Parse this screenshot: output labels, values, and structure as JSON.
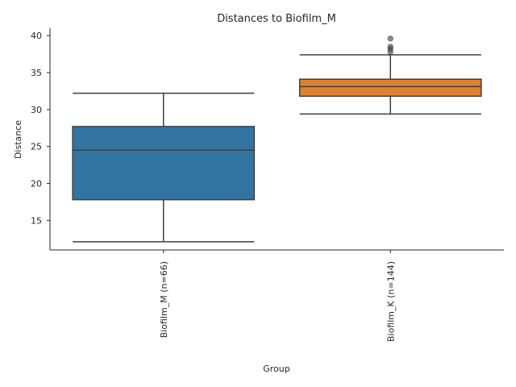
{
  "chart_data": {
    "type": "box",
    "title": "Distances to Biofilm_M",
    "xlabel": "Group",
    "ylabel": "Distance",
    "ylim": [
      11.0,
      41.0
    ],
    "yticks": [
      15,
      20,
      25,
      30,
      35,
      40
    ],
    "grid": false,
    "legend": "none",
    "categories": [
      "Biofilm_M (n=66)",
      "Biofilm_K (n=144)"
    ],
    "boxes": [
      {
        "category": "Biofilm_M (n=66)",
        "whisker_low": 12.1,
        "q1": 17.8,
        "median": 24.5,
        "q3": 27.7,
        "whisker_high": 32.2,
        "outliers": [],
        "color": "#3274a1"
      },
      {
        "category": "Biofilm_K (n=144)",
        "whisker_low": 29.4,
        "q1": 31.8,
        "median": 33.1,
        "q3": 34.1,
        "whisker_high": 37.4,
        "outliers": [
          37.8,
          38.2,
          38.5,
          39.6
        ],
        "color": "#e1812c"
      }
    ],
    "line_color": "#3f3f3f"
  }
}
